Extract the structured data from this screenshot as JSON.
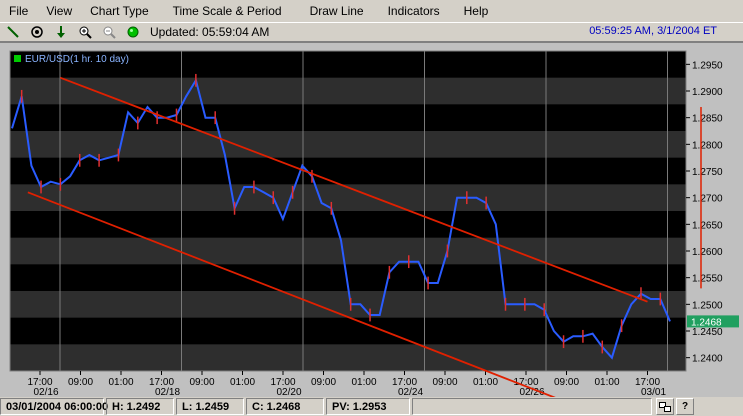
{
  "menu": {
    "items": [
      "File",
      "View",
      "Chart Type",
      "Time Scale & Period",
      "Draw Line",
      "Indicators",
      "Help"
    ]
  },
  "toolbar": {
    "updated": "Updated: 05:59:04 AM",
    "clock": "05:59:25 AM, 3/1/2004 ET"
  },
  "chart_data": {
    "type": "line",
    "title": "EUR/USD(1 hr.  10 day)",
    "legend_color": "#00cc00",
    "ylim": [
      1.2375,
      1.2975
    ],
    "y_ticks": [
      "1.2400",
      "1.2450",
      "1.2500",
      "1.2550",
      "1.2600",
      "1.2650",
      "1.2700",
      "1.2750",
      "1.2800",
      "1.2850",
      "1.2900",
      "1.2950"
    ],
    "x_labels": [
      {
        "t": "17:00",
        "d": "02/16"
      },
      {
        "t": "09:00",
        "d": ""
      },
      {
        "t": "01:00",
        "d": ""
      },
      {
        "t": "17:00",
        "d": "02/18"
      },
      {
        "t": "09:00",
        "d": ""
      },
      {
        "t": "01:00",
        "d": ""
      },
      {
        "t": "17:00",
        "d": "02/20"
      },
      {
        "t": "09:00",
        "d": ""
      },
      {
        "t": "01:00",
        "d": ""
      },
      {
        "t": "17:00",
        "d": "02/24"
      },
      {
        "t": "09:00",
        "d": ""
      },
      {
        "t": "01:00",
        "d": ""
      },
      {
        "t": "17:00",
        "d": "02/26"
      },
      {
        "t": "09:00",
        "d": ""
      },
      {
        "t": "01:00",
        "d": ""
      },
      {
        "t": "17:00",
        "d": "03/01"
      }
    ],
    "last_price": "1.2468",
    "series": [
      {
        "values": [
          1.283,
          1.289,
          1.276,
          1.272,
          1.273,
          1.2725,
          1.274,
          1.277,
          1.278,
          1.277,
          1.2775,
          1.278,
          1.286,
          1.284,
          1.287,
          1.285,
          1.285,
          1.2855,
          1.289,
          1.292,
          1.285,
          1.285,
          1.278,
          1.268,
          1.272,
          1.272,
          1.271,
          1.27,
          1.266,
          1.271,
          1.276,
          1.274,
          1.269,
          1.268,
          1.262,
          1.25,
          1.25,
          1.248,
          1.248,
          1.256,
          1.258,
          1.258,
          1.258,
          1.254,
          1.254,
          1.26,
          1.27,
          1.27,
          1.27,
          1.269,
          1.265,
          1.25,
          1.25,
          1.25,
          1.25,
          1.249,
          1.245,
          1.243,
          1.244,
          1.244,
          1.2445,
          1.242,
          1.24,
          1.246,
          1.25,
          1.252,
          1.251,
          1.251,
          1.2468
        ]
      }
    ],
    "channel_lines": [
      {
        "x": [
          0.5,
          15.0
        ],
        "y": [
          1.2925,
          1.2505
        ]
      },
      {
        "x": [
          -0.3,
          13.9
        ],
        "y": [
          1.271,
          1.229
        ]
      }
    ]
  },
  "status": {
    "date": "03/01/2004 06:00:00",
    "high": "H: 1.2492",
    "low": "L: 1.2459",
    "close": "C: 1.2468",
    "pv": "PV: 1.2953"
  }
}
